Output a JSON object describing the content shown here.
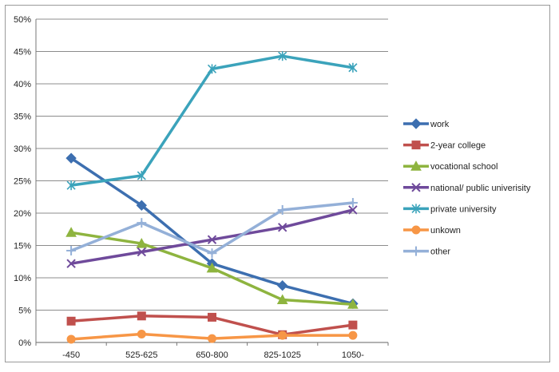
{
  "chart_data": {
    "type": "line",
    "title": "",
    "xlabel": "",
    "ylabel": "",
    "categories": [
      "-450",
      "525-625",
      "650-800",
      "825-1025",
      "1050-"
    ],
    "ylim": [
      0,
      50
    ],
    "ytick_step": 5,
    "ytick_labels": [
      "0%",
      "5%",
      "10%",
      "15%",
      "20%",
      "25%",
      "30%",
      "35%",
      "40%",
      "45%",
      "50%"
    ],
    "grid": true,
    "legend_position": "right",
    "series": [
      {
        "name": "work",
        "color": "#3d6fb0",
        "marker": "diamond",
        "values": [
          28.5,
          21.2,
          12.2,
          8.8,
          6.0
        ]
      },
      {
        "name": "2-year college",
        "color": "#c0504d",
        "marker": "square",
        "values": [
          3.3,
          4.1,
          3.9,
          1.2,
          2.7
        ]
      },
      {
        "name": "vocational school",
        "color": "#8eb43f",
        "marker": "triangle",
        "values": [
          17.0,
          15.3,
          11.5,
          6.6,
          5.9
        ]
      },
      {
        "name": "national/ public univerisity",
        "color": "#6f4a9b",
        "marker": "x",
        "values": [
          12.2,
          14.0,
          15.9,
          17.8,
          20.5
        ]
      },
      {
        "name": "private university",
        "color": "#3ba3bb",
        "marker": "star",
        "values": [
          24.3,
          25.8,
          42.3,
          44.3,
          42.5
        ]
      },
      {
        "name": "unkown",
        "color": "#f79646",
        "marker": "circle",
        "values": [
          0.5,
          1.3,
          0.6,
          1.1,
          1.1
        ]
      },
      {
        "name": "other",
        "color": "#94b0d8",
        "marker": "plus",
        "values": [
          14.2,
          18.5,
          13.8,
          20.5,
          21.6
        ]
      }
    ]
  }
}
